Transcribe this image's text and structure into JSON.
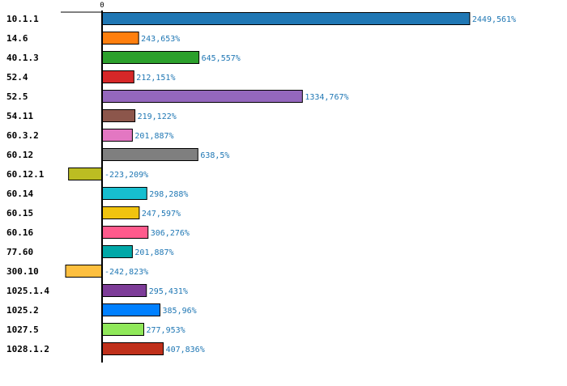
{
  "chart_data": {
    "type": "bar",
    "orientation": "horizontal",
    "title": "",
    "xlabel": "",
    "ylabel": "",
    "x_tick_labels": [
      "0"
    ],
    "value_suffix": "%",
    "categories": [
      "10.1.1",
      "14.6",
      "40.1.3",
      "52.4",
      "52.5",
      "54.11",
      "60.3.2",
      "60.12",
      "60.12.1",
      "60.14",
      "60.15",
      "60.16",
      "77.60",
      "300.10",
      "1025.1.4",
      "1025.2",
      "1027.5",
      "1028.1.2"
    ],
    "values": [
      2449.561,
      243.653,
      645.557,
      212.151,
      1334.767,
      219.122,
      201.887,
      638.5,
      -223.209,
      298.288,
      247.597,
      306.276,
      201.887,
      -242.823,
      295.431,
      385.96,
      277.953,
      407.836
    ],
    "value_labels": [
      "2449,561%",
      "243,653%",
      "645,557%",
      "212,151%",
      "1334,767%",
      "219,122%",
      "201,887%",
      "638,5%",
      "-223,209%",
      "298,288%",
      "247,597%",
      "306,276%",
      "201,887%",
      "-242,823%",
      "295,431%",
      "385,96%",
      "277,953%",
      "407,836%"
    ],
    "colors": [
      "#1f77b4",
      "#ff7f0e",
      "#2ca02c",
      "#d62728",
      "#9467bd",
      "#8c564b",
      "#e377c2",
      "#7f7f7f",
      "#bcbd22",
      "#17becf",
      "#f1c40f",
      "#ff5a8c",
      "#00a8a8",
      "#fdbf3f",
      "#7d3c98",
      "#0080ff",
      "#90e85a",
      "#c0301b"
    ],
    "xlim": [
      -275,
      2520
    ],
    "grid": false,
    "legend": "none"
  }
}
